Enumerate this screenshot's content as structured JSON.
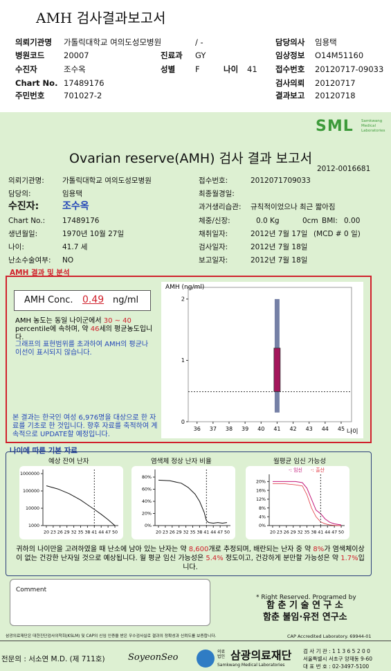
{
  "header": {
    "title": "AMH 검사결과보고서",
    "items": [
      "의뢰기관명",
      "가톨릭대학교 여의도성모병원",
      "/ -",
      "담당의사",
      "임용택",
      "병원코드",
      "20007",
      "진료과",
      "GY",
      "임상정보",
      "O14M51160",
      "수진자",
      "조수옥",
      "성별",
      "F",
      "나이",
      "41",
      "접수번호",
      "20120717-09033",
      "Chart No.",
      "17489176",
      "검사의뢰",
      "20120717",
      "주민번호",
      "701027-2",
      "결과보고",
      "20120718"
    ]
  },
  "report": {
    "logo": "SML",
    "logo_text": "Samkwang Medical Laboratories",
    "title": "Ovarian reserve(AMH) 검사 결과 보고서",
    "number": "2012-0016681",
    "info": [
      "의뢰기관명:",
      "가톨릭대학교 여의도성모병원",
      "접수번호:",
      "2012071709033",
      "담당의:",
      "임용택",
      "최종월경일:",
      "수진자:",
      "조수옥",
      "과거생리습관:",
      "규칙적이었으나 최근 짧아짐",
      "Chart No.:",
      "17489176",
      "체중/신장:",
      "0.0 Kg",
      "0cm",
      "BMI:",
      "0.00",
      "생년월일:",
      "1970년 10월 27일",
      "채취일자:",
      "2012년 7월 17일",
      "(MCD # 0 일)",
      "나이:",
      "41.7 세",
      "검사일자:",
      "2012년 7월 18일",
      "난소수술여부:",
      "NO",
      "보고일자:",
      "2012년 7월 18일"
    ],
    "analysis": {
      "title": "AMH 결과 및 분석",
      "conc_label": "AMH Conc.",
      "value": 0.49,
      "unit": "ng/ml",
      "text": [
        "AMH 농도는 동일 나이군에서 ",
        "30 ~ 40",
        " percentile에 속하며, 약 ",
        "46",
        "세의 평균농도입니다."
      ],
      "note": "그래프의 표현범위를 초과하여 AMH의 평균나이선이 표시되지 않습니다.",
      "source": "본 결과는 한국인 여성 6,976명을 대상으로 한 자료를 기초로 한 것입니다. 향후 자료를 축적하여 계속적으로 UPDATE할 예정입니다."
    },
    "basic": {
      "title": "나이에 따른 기본 자료",
      "summary": [
        "귀하의 나이만을 고려하였을 때 난소에 남아 있는 난자는 약 ",
        "8,600",
        "개로 추정되며, 배란되는 난자 중 약 ",
        "8%",
        "가 염색체이상이 없는 건강한 난자일 것으로 예상됩니다. 월 평균 임신 가능성은 ",
        "5.4%",
        " 정도이고, 건강하게 분만할 가능성은 약 ",
        "1.7%",
        "입니다."
      ]
    },
    "comment": "Comment",
    "credits": [
      "* Right Reserved. Programed by",
      "함 춘 기 술 연 구 소",
      "함춘 불임·유전 연구소"
    ]
  },
  "footer": {
    "notice": "삼광의료재단은 대한진단검사의학회(KSLM) 및 CAP의 신임 인증을 받은 우수검사실로 결과의 정확성과 신뢰도를 보증합니다.",
    "cap": "CAP Accredited Laboratory. 69944-01",
    "doctor": "전문의 : 서소연 M.D. (제 711호)",
    "signature": "SoyeonSeo",
    "org_prefix": "의료법인",
    "org": "삼광의료재단",
    "org_en": "Samkwang Medical Laboratories",
    "info": [
      "검 사 기 관 : 1 1 3 6 5 2 0 0",
      "서울특별시 서초구 양재동 9-60",
      "대 표 번 호 : 02-3497-5100"
    ]
  },
  "chart_data": [
    {
      "type": "range",
      "title": "AMH (ng/ml)",
      "x_label": "나이",
      "xlim": [
        35.45,
        45.65
      ],
      "xticks": [
        36,
        37,
        38,
        39,
        40,
        41,
        42,
        43,
        44,
        45
      ],
      "ylim": [
        0,
        2.1
      ],
      "yticks": [
        0,
        1,
        2
      ],
      "series": [
        {
          "color": "#7580a6",
          "x": [
            41
          ],
          "low": [
            0.15
          ],
          "high": [
            2.0
          ]
        },
        {
          "color": "#a3165b",
          "x": [
            41
          ],
          "low": [
            0.49
          ],
          "high": [
            1.2
          ]
        }
      ]
    },
    {
      "type": "line",
      "title": "예상 잔여 난자",
      "log": true,
      "xlim": [
        18.5,
        51.5
      ],
      "xticks": [
        20,
        23,
        26,
        29,
        32,
        35,
        38,
        41,
        44,
        47,
        50
      ],
      "ylim": [
        1000,
        1200000
      ],
      "yticks": [
        1000000,
        100000,
        10000,
        1000
      ],
      "marker_x": 41,
      "x": [
        20,
        25,
        30,
        35,
        38,
        41,
        44,
        47,
        50
      ],
      "series": [
        {
          "color": "#111111",
          "values": [
            200000,
            130000,
            70000,
            30000,
            16000,
            8600,
            4500,
            2200,
            1000
          ]
        }
      ]
    },
    {
      "type": "line",
      "title": "염색체 정상 난자 비율",
      "xlim": [
        18.5,
        51.5
      ],
      "xticks": [
        20,
        23,
        26,
        29,
        32,
        35,
        38,
        41,
        44,
        47,
        50
      ],
      "ylim": [
        0,
        88
      ],
      "yticks": [
        {
          "value": 80,
          "label": "80%"
        },
        {
          "value": 60,
          "label": "60%"
        },
        {
          "value": 40,
          "label": "40%"
        },
        {
          "value": 20,
          "label": "20%"
        },
        {
          "value": 0,
          "label": "0%"
        }
      ],
      "marker_x": 41,
      "x": [
        20,
        25,
        30,
        33,
        36,
        38,
        40,
        41,
        42,
        44,
        46,
        48,
        50
      ],
      "series": [
        {
          "color": "#111111",
          "values": [
            75,
            74,
            70,
            63,
            52,
            40,
            22,
            8,
            5,
            4,
            5,
            4,
            5
          ]
        }
      ]
    },
    {
      "type": "line",
      "title": "월평균 임신 가능성",
      "xlim": [
        18.5,
        51.5
      ],
      "xticks": [
        20,
        23,
        26,
        29,
        32,
        35,
        38,
        41,
        44,
        47,
        50
      ],
      "ylim": [
        0,
        22
      ],
      "yticks": [
        {
          "value": 20,
          "label": "20%"
        },
        {
          "value": 16,
          "label": "16%"
        },
        {
          "value": 12,
          "label": "12%"
        },
        {
          "value": 8,
          "label": "8%"
        },
        {
          "value": 4,
          "label": "4%"
        },
        {
          "value": 0,
          "label": "0%"
        }
      ],
      "marker_x": 41,
      "x": [
        20,
        25,
        30,
        33,
        35,
        37,
        39,
        41,
        43,
        45,
        47,
        50
      ],
      "series": [
        {
          "name": "-: 임신",
          "color": "#c2187a",
          "values": [
            20,
            20,
            20,
            19.5,
            17,
            12,
            7,
            5.4,
            3,
            1.5,
            0.8,
            0.3
          ]
        },
        {
          "name": "-: 출산",
          "color": "#e0303a",
          "values": [
            19,
            19,
            18.5,
            18,
            14,
            8,
            4,
            1.7,
            0.8,
            0.3,
            0.1,
            0
          ]
        }
      ]
    }
  ]
}
